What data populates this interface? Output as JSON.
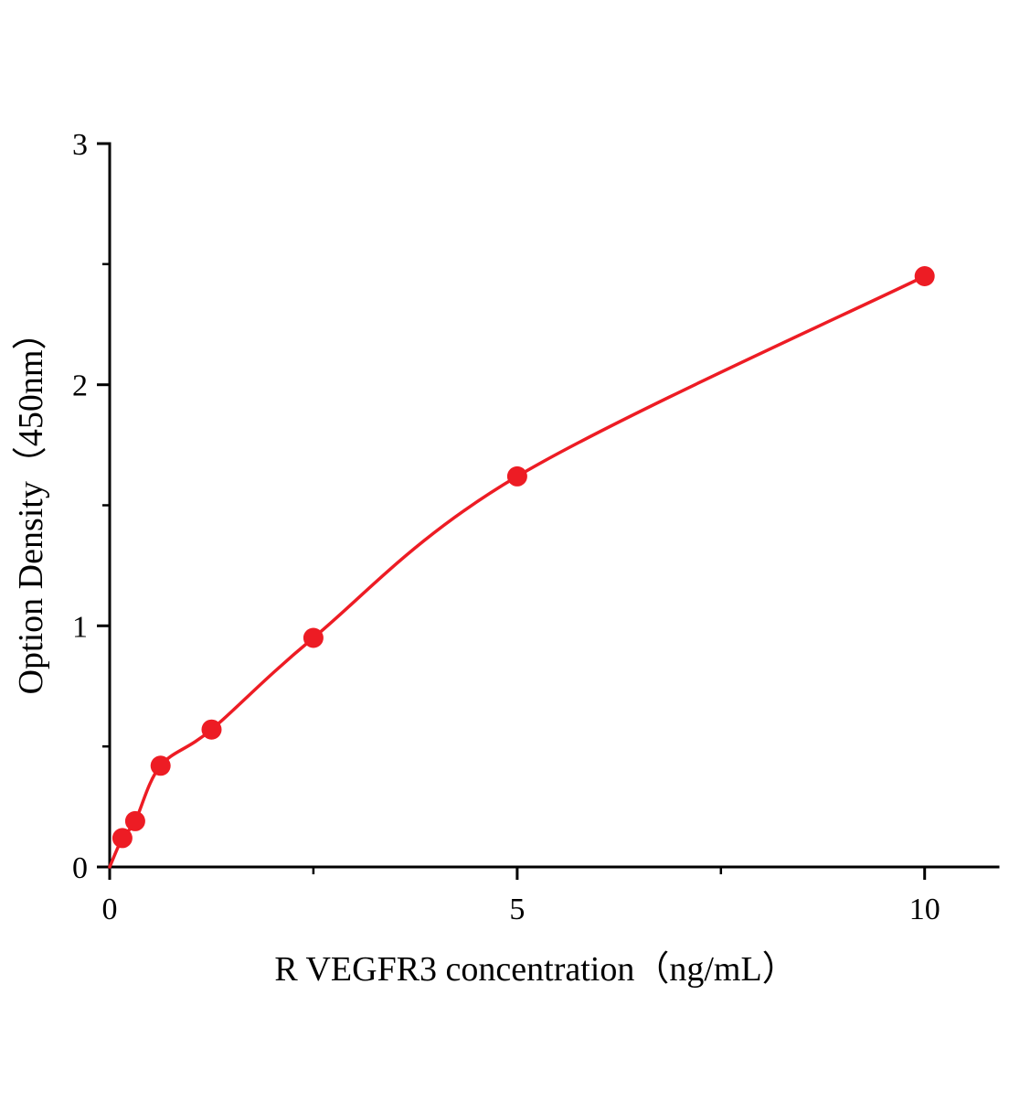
{
  "chart_data": {
    "type": "scatter",
    "title": "",
    "xlabel": "R VEGFR3 concentration（ng/mL）",
    "ylabel": "Option Density（450nm）",
    "x": [
      0.156,
      0.3125,
      0.625,
      1.25,
      2.5,
      5,
      10
    ],
    "y": [
      0.12,
      0.19,
      0.42,
      0.57,
      0.95,
      1.62,
      2.45
    ],
    "curve_start": [
      0,
      0
    ],
    "xlim": [
      0,
      10.9
    ],
    "ylim": [
      0,
      3
    ],
    "x_ticks": [
      0,
      5,
      10
    ],
    "y_ticks": [
      0,
      1,
      2,
      3
    ],
    "x_minor_ticks": [
      2.5,
      7.5
    ],
    "y_minor_ticks": [
      0.5,
      1.5,
      2.5
    ],
    "grid": "off",
    "legend": "none",
    "line_color": "#ed1c24",
    "marker_color": "#ed1c24",
    "axis_color": "#000000",
    "background": "#ffffff"
  }
}
